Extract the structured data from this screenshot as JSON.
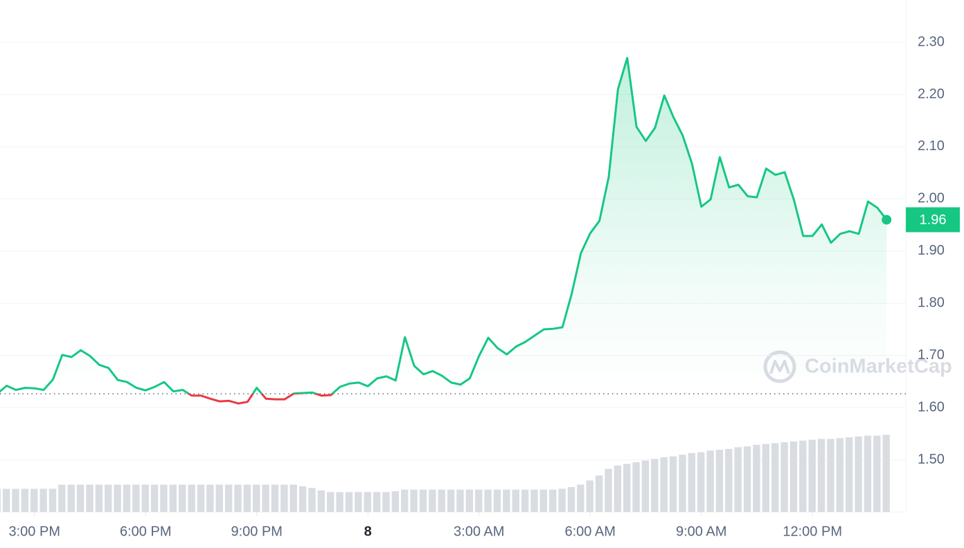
{
  "chart_data": {
    "type": "line",
    "x": [
      14,
      14.25,
      14.5,
      14.75,
      15,
      15.25,
      15.5,
      15.75,
      16,
      16.25,
      16.5,
      16.75,
      17,
      17.25,
      17.5,
      17.75,
      18,
      18.25,
      18.5,
      18.75,
      19,
      19.25,
      19.5,
      19.75,
      20,
      20.25,
      20.5,
      20.75,
      21,
      21.25,
      21.5,
      21.75,
      22,
      22.25,
      22.5,
      22.75,
      23,
      23.25,
      23.5,
      23.75,
      24,
      24.25,
      24.5,
      24.75,
      25,
      25.25,
      25.5,
      25.75,
      26,
      26.25,
      26.5,
      26.75,
      27,
      27.25,
      27.5,
      27.75,
      28,
      28.25,
      28.5,
      28.75,
      29,
      29.25,
      29.5,
      29.75,
      30,
      30.25,
      30.5,
      30.75,
      31,
      31.25,
      31.5,
      31.75,
      32,
      32.25,
      32.5,
      32.75,
      33,
      33.25,
      33.5,
      33.75,
      34,
      34.25,
      34.5,
      34.75,
      35,
      35.25,
      35.5,
      35.75,
      36,
      36.25,
      36.5,
      36.75,
      37,
      37.25,
      37.5,
      37.75,
      38
    ],
    "series": [
      {
        "color": "#16c784",
        "below_color": "#ea3943",
        "values": [
          1.627,
          1.642,
          1.634,
          1.638,
          1.637,
          1.634,
          1.654,
          1.701,
          1.697,
          1.71,
          1.699,
          1.682,
          1.676,
          1.653,
          1.649,
          1.638,
          1.633,
          1.64,
          1.649,
          1.631,
          1.634,
          1.623,
          1.623,
          1.617,
          1.612,
          1.613,
          1.608,
          1.611,
          1.638,
          1.617,
          1.616,
          1.616,
          1.627,
          1.628,
          1.629,
          1.623,
          1.624,
          1.64,
          1.646,
          1.648,
          1.641,
          1.656,
          1.66,
          1.652,
          1.735,
          1.68,
          1.664,
          1.67,
          1.661,
          1.648,
          1.644,
          1.656,
          1.699,
          1.734,
          1.714,
          1.702,
          1.717,
          1.726,
          1.738,
          1.75,
          1.751,
          1.754,
          1.818,
          1.896,
          1.934,
          1.958,
          2.042,
          2.21,
          2.27,
          2.138,
          2.111,
          2.136,
          2.198,
          2.156,
          2.121,
          2.067,
          1.985,
          1.999,
          2.08,
          2.022,
          2.027,
          2.005,
          2.003,
          2.058,
          2.046,
          2.051,
          1.998,
          1.929,
          1.929,
          1.951,
          1.916,
          1.933,
          1.938,
          1.933,
          1.995,
          1.983,
          1.96
        ]
      }
    ],
    "volume": {
      "color": "#d9dce1",
      "lim": [
        0,
        100
      ],
      "values": [
        28,
        28,
        28,
        28,
        28,
        28,
        28,
        33,
        33,
        33,
        33,
        33,
        33,
        33,
        33,
        33,
        33,
        33,
        33,
        33,
        33,
        33,
        33,
        33,
        33,
        33,
        33,
        33,
        33,
        33,
        33,
        33,
        33,
        31,
        29,
        26,
        24,
        24,
        24,
        24,
        24,
        24,
        24,
        25,
        27,
        27,
        27,
        27,
        27,
        27,
        27,
        27,
        27,
        27,
        27,
        27,
        27,
        27,
        27,
        27,
        27,
        28,
        30,
        33,
        38,
        44,
        52,
        56,
        58,
        60,
        62,
        64,
        66,
        67,
        69,
        71,
        72,
        74,
        75,
        76,
        78,
        79,
        81,
        82,
        83,
        84,
        85,
        86,
        87,
        88,
        88,
        89,
        90,
        91,
        92,
        92,
        93
      ]
    },
    "reference": 1.6265,
    "last_price": "1.96",
    "watermark": "CoinMarketCap",
    "xlim": [
      14.07,
      38.52
    ],
    "ylim": [
      1.4,
      2.381
    ],
    "xticks": [
      {
        "value": 15,
        "label": "3:00 PM"
      },
      {
        "value": 18,
        "label": "6:00 PM"
      },
      {
        "value": 21,
        "label": "9:00 PM"
      },
      {
        "value": 24,
        "label": "8"
      },
      {
        "value": 27,
        "label": "3:00 AM"
      },
      {
        "value": 30,
        "label": "6:00 AM"
      },
      {
        "value": 33,
        "label": "9:00 AM"
      },
      {
        "value": 36,
        "label": "12:00 PM"
      }
    ],
    "yticks": [
      {
        "value": 1.5,
        "label": "1.50"
      },
      {
        "value": 1.6,
        "label": "1.60"
      },
      {
        "value": 1.7,
        "label": "1.70"
      },
      {
        "value": 1.8,
        "label": "1.80"
      },
      {
        "value": 1.9,
        "label": "1.90"
      },
      {
        "value": 2.0,
        "label": "2.00"
      },
      {
        "value": 2.1,
        "label": "2.10"
      },
      {
        "value": 2.2,
        "label": "2.20"
      },
      {
        "value": 2.3,
        "label": "2.30"
      }
    ],
    "grid": true
  }
}
